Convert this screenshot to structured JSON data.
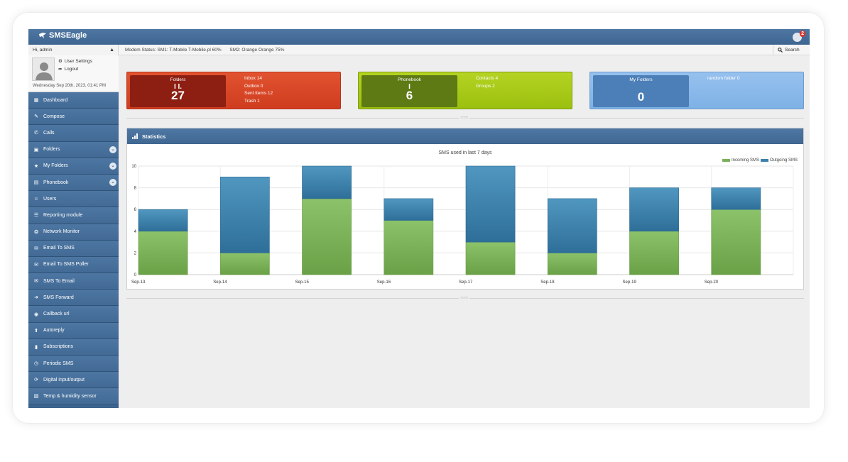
{
  "app": {
    "name": "SMSEagle",
    "notifications": "2"
  },
  "status": {
    "greeting": "Hi, admin",
    "modem_label": "Modem Status: SM1: T-Mobile T-Mobile.pl 60%",
    "modem_sm2": "SM2: Orange Orange 75%",
    "search_label": "Search"
  },
  "profile": {
    "user_settings": "User Settings",
    "logout": "Logout",
    "datetime": "Wednesday Sep 20th, 2023, 01:41 PM"
  },
  "sidebar": {
    "items": [
      {
        "label": "Dashboard",
        "icon": "dashboard-icon",
        "expand": false
      },
      {
        "label": "Compose",
        "icon": "pencil-icon",
        "expand": false
      },
      {
        "label": "Calls",
        "icon": "phone-icon",
        "expand": false
      },
      {
        "label": "Folders",
        "icon": "folder-icon",
        "expand": true
      },
      {
        "label": "My Folders",
        "icon": "star-icon",
        "expand": true
      },
      {
        "label": "Phonebook",
        "icon": "book-icon",
        "expand": true
      },
      {
        "label": "Users",
        "icon": "users-icon",
        "expand": false
      },
      {
        "label": "Reporting module",
        "icon": "list-icon",
        "expand": false
      },
      {
        "label": "Network Monitor",
        "icon": "network-icon",
        "expand": false
      },
      {
        "label": "Email To SMS",
        "icon": "envelope-icon",
        "expand": false
      },
      {
        "label": "Email To SMS Poller",
        "icon": "envelope-icon",
        "expand": false
      },
      {
        "label": "SMS To Email",
        "icon": "envelope-icon",
        "expand": false
      },
      {
        "label": "SMS Forward",
        "icon": "arrow-right-icon",
        "expand": false
      },
      {
        "label": "Callback url",
        "icon": "link-icon",
        "expand": false
      },
      {
        "label": "Autoreply",
        "icon": "arrow-up-icon",
        "expand": false
      },
      {
        "label": "Subscriptions",
        "icon": "bookmark-icon",
        "expand": false
      },
      {
        "label": "Periodic SMS",
        "icon": "clock-icon",
        "expand": false
      },
      {
        "label": "Digital input/output",
        "icon": "refresh-icon",
        "expand": false
      },
      {
        "label": "Temp & humidity sensor",
        "icon": "bar-chart-icon",
        "expand": false
      }
    ]
  },
  "tiles": {
    "folders": {
      "label": "Folders",
      "value": "27",
      "lines": [
        "Inbox 14",
        "Outbox 0",
        "Sent Items 12",
        "Trash 1"
      ],
      "color": "#d9442a"
    },
    "phonebook": {
      "label": "Phonebook",
      "value": "6",
      "lines": [
        "Contacts 4",
        "Groups 2"
      ],
      "color": "#a6c916"
    },
    "my_folders": {
      "label": "My Folders",
      "value": "0",
      "lines": [
        "random folder 0"
      ],
      "color": "#8bb9ea"
    }
  },
  "statistics": {
    "title": "Statistics"
  },
  "chart_data": {
    "type": "bar",
    "stacked": true,
    "title": "SMS used in last 7 days",
    "categories": [
      "Sep-13",
      "Sep-14",
      "Sep-15",
      "Sep-16",
      "Sep-17",
      "Sep-18",
      "Sep-19",
      "Sep-20"
    ],
    "series": [
      {
        "name": "Incoming SMS",
        "values": [
          4,
          2,
          7,
          5,
          3,
          2,
          4,
          6
        ],
        "color": "#7bb05a"
      },
      {
        "name": "Outgoing SMS",
        "values": [
          2,
          7,
          3,
          2,
          7,
          5,
          4,
          2
        ],
        "color": "#3d82ad"
      }
    ],
    "ylim": [
      0,
      10
    ],
    "yticks": [
      0,
      2,
      4,
      6,
      8,
      10
    ],
    "legend": "top-right",
    "grid": true
  }
}
